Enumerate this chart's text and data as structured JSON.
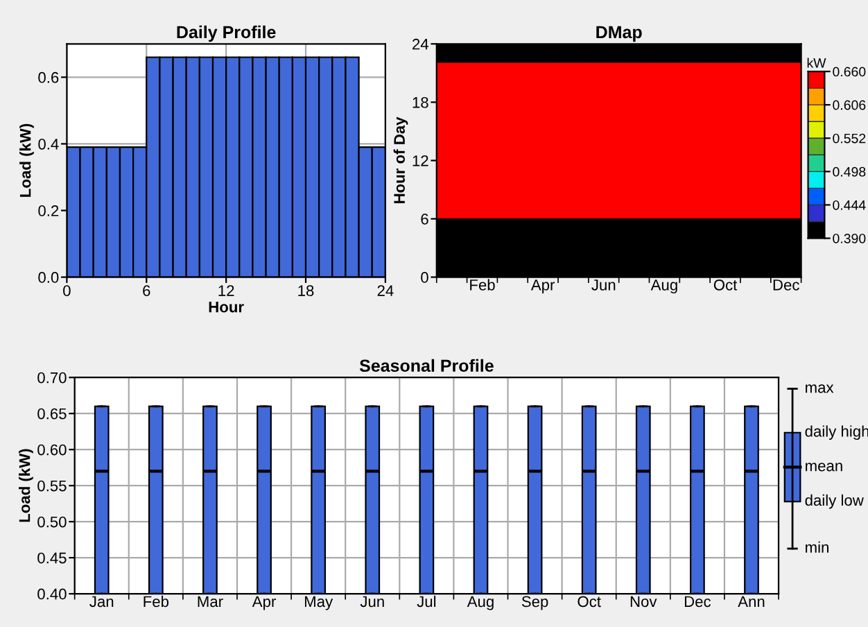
{
  "chart_data": [
    {
      "type": "histogram",
      "title": "Daily Profile",
      "xlabel": "Hour",
      "ylabel": "Load (kW)",
      "bins": [
        0,
        1,
        2,
        3,
        4,
        5,
        6,
        7,
        8,
        9,
        10,
        11,
        12,
        13,
        14,
        15,
        16,
        17,
        18,
        19,
        20,
        21,
        22,
        23,
        24
      ],
      "values": [
        0.39,
        0.39,
        0.39,
        0.39,
        0.39,
        0.39,
        0.66,
        0.66,
        0.66,
        0.66,
        0.66,
        0.66,
        0.66,
        0.66,
        0.66,
        0.66,
        0.66,
        0.66,
        0.66,
        0.66,
        0.66,
        0.66,
        0.39,
        0.39
      ],
      "color": "#4169d9",
      "xlim": [
        0,
        24
      ],
      "xticks": [
        0,
        6,
        12,
        18,
        24
      ],
      "ylim": [
        0,
        0.7
      ],
      "yticks": [
        {
          "value": 0,
          "label": "0.0"
        },
        0.2,
        0.4,
        0.6
      ],
      "grid": true
    },
    {
      "type": "heatmap",
      "title": "DMap",
      "ylabel": "Hour of Day",
      "clabel": "kW",
      "categories": [
        null,
        "Feb",
        null,
        "Apr",
        null,
        "Jun",
        null,
        "Aug",
        null,
        "Oct",
        null,
        "Dec"
      ],
      "ylim": [
        0,
        24
      ],
      "yticks": [
        0,
        6,
        12,
        18,
        24
      ],
      "cells": [
        [
          0.39,
          0.39,
          0.39,
          0.39,
          0.39,
          0.39,
          0.39,
          0.39,
          0.39,
          0.39,
          0.39,
          0.39
        ],
        [
          0.39,
          0.39,
          0.39,
          0.39,
          0.39,
          0.39,
          0.39,
          0.39,
          0.39,
          0.39,
          0.39,
          0.39
        ],
        [
          0.66,
          0.66,
          0.66,
          0.66,
          0.66,
          0.66,
          0.66,
          0.66,
          0.66,
          0.66,
          0.66,
          0.66
        ],
        [
          0.66,
          0.66,
          0.66,
          0.66,
          0.66,
          0.66,
          0.66,
          0.66,
          0.66,
          0.66,
          0.66,
          0.66
        ],
        [
          0.66,
          0.66,
          0.66,
          0.66,
          0.66,
          0.66,
          0.66,
          0.66,
          0.66,
          0.66,
          0.66,
          0.66
        ],
        [
          0.66,
          0.66,
          0.66,
          0.66,
          0.66,
          0.66,
          0.66,
          0.66,
          0.66,
          0.66,
          0.66,
          0.66
        ],
        [
          0.66,
          0.66,
          0.66,
          0.66,
          0.66,
          0.66,
          0.66,
          0.66,
          0.66,
          0.66,
          0.66,
          0.66
        ],
        [
          0.66,
          0.66,
          0.66,
          0.66,
          0.66,
          0.66,
          0.66,
          0.66,
          0.66,
          0.66,
          0.66,
          0.66
        ],
        [
          0.66,
          0.66,
          0.66,
          0.66,
          0.66,
          0.66,
          0.66,
          0.66,
          0.66,
          0.66,
          0.66,
          0.66
        ],
        [
          0.66,
          0.66,
          0.66,
          0.66,
          0.66,
          0.66,
          0.66,
          0.66,
          0.66,
          0.66,
          0.66,
          0.66
        ],
        [
          0.66,
          0.66,
          0.66,
          0.66,
          0.66,
          0.66,
          0.66,
          0.66,
          0.66,
          0.66,
          0.66,
          0.66
        ],
        [
          0.66,
          0.66,
          0.66,
          0.66,
          0.66,
          0.66,
          0.66,
          0.66,
          0.66,
          0.66,
          0.66,
          0.66
        ],
        [
          0.66,
          0.66,
          0.66,
          0.66,
          0.66,
          0.66,
          0.66,
          0.66,
          0.66,
          0.66,
          0.66,
          0.66
        ],
        [
          0.66,
          0.66,
          0.66,
          0.66,
          0.66,
          0.66,
          0.66,
          0.66,
          0.66,
          0.66,
          0.66,
          0.66
        ],
        [
          0.66,
          0.66,
          0.66,
          0.66,
          0.66,
          0.66,
          0.66,
          0.66,
          0.66,
          0.66,
          0.66,
          0.66
        ],
        [
          0.66,
          0.66,
          0.66,
          0.66,
          0.66,
          0.66,
          0.66,
          0.66,
          0.66,
          0.66,
          0.66,
          0.66
        ],
        [
          0.66,
          0.66,
          0.66,
          0.66,
          0.66,
          0.66,
          0.66,
          0.66,
          0.66,
          0.66,
          0.66,
          0.66
        ],
        [
          0.66,
          0.66,
          0.66,
          0.66,
          0.66,
          0.66,
          0.66,
          0.66,
          0.66,
          0.66,
          0.66,
          0.66
        ],
        [
          0.39,
          0.39,
          0.39,
          0.39,
          0.39,
          0.39,
          0.39,
          0.39,
          0.39,
          0.39,
          0.39,
          0.39
        ],
        [
          0.39,
          0.39,
          0.39,
          0.39,
          0.39,
          0.39,
          0.39,
          0.39,
          0.39,
          0.39,
          0.39,
          0.39
        ],
        [
          0.39,
          0.39,
          0.39,
          0.39,
          0.39,
          0.39,
          0.39,
          0.39,
          0.39,
          0.39,
          0.39,
          0.39
        ],
        [
          0.39,
          0.39,
          0.39,
          0.39,
          0.39,
          0.39,
          0.39,
          0.39,
          0.39,
          0.39,
          0.39,
          0.39
        ],
        [
          0.39,
          0.39,
          0.39,
          0.39,
          0.39,
          0.39,
          0.39,
          0.39,
          0.39,
          0.39,
          0.39,
          0.39
        ],
        [
          0.39,
          0.39,
          0.39,
          0.39,
          0.39,
          0.39,
          0.39,
          0.39,
          0.39,
          0.39,
          0.39,
          0.39
        ]
      ],
      "clim": [
        0.39,
        0.66
      ],
      "cticks": [
        {
          "value": 0.39,
          "label": "0.390"
        },
        {
          "value": 0.444,
          "label": "0.444"
        },
        {
          "value": 0.498,
          "label": "0.498"
        },
        {
          "value": 0.552,
          "label": "0.552"
        },
        {
          "value": 0.606,
          "label": "0.606"
        },
        {
          "value": 0.66,
          "label": "0.660"
        }
      ],
      "colors": [
        "#000000",
        "#3030d0",
        "#0060ff",
        "#00f0f0",
        "#20d090",
        "#60b030",
        "#e0f000",
        "#ffd000",
        "#ffa000",
        "#ff0000"
      ]
    },
    {
      "type": "box",
      "title": "Seasonal Profile",
      "ylabel": "Load (kW)",
      "categories": [
        "Jan",
        "Feb",
        "Mar",
        "Apr",
        "May",
        "Jun",
        "Jul",
        "Aug",
        "Sep",
        "Oct",
        "Nov",
        "Dec",
        "Ann"
      ],
      "boxes": [
        {
          "low": 0.4,
          "q1": 0.4,
          "median": 0.57,
          "q3": 0.66,
          "high": 0.66
        },
        {
          "low": 0.4,
          "q1": 0.4,
          "median": 0.57,
          "q3": 0.66,
          "high": 0.66
        },
        {
          "low": 0.4,
          "q1": 0.4,
          "median": 0.57,
          "q3": 0.66,
          "high": 0.66
        },
        {
          "low": 0.4,
          "q1": 0.4,
          "median": 0.57,
          "q3": 0.66,
          "high": 0.66
        },
        {
          "low": 0.4,
          "q1": 0.4,
          "median": 0.57,
          "q3": 0.66,
          "high": 0.66
        },
        {
          "low": 0.4,
          "q1": 0.4,
          "median": 0.57,
          "q3": 0.66,
          "high": 0.66
        },
        {
          "low": 0.4,
          "q1": 0.4,
          "median": 0.57,
          "q3": 0.66,
          "high": 0.66
        },
        {
          "low": 0.4,
          "q1": 0.4,
          "median": 0.57,
          "q3": 0.66,
          "high": 0.66
        },
        {
          "low": 0.4,
          "q1": 0.4,
          "median": 0.57,
          "q3": 0.66,
          "high": 0.66
        },
        {
          "low": 0.4,
          "q1": 0.4,
          "median": 0.57,
          "q3": 0.66,
          "high": 0.66
        },
        {
          "low": 0.4,
          "q1": 0.4,
          "median": 0.57,
          "q3": 0.66,
          "high": 0.66
        },
        {
          "low": 0.4,
          "q1": 0.4,
          "median": 0.57,
          "q3": 0.66,
          "high": 0.66
        },
        {
          "low": 0.4,
          "q1": 0.4,
          "median": 0.57,
          "q3": 0.66,
          "high": 0.66
        }
      ],
      "color": "#4169d9",
      "ylim": [
        0.4,
        0.7
      ],
      "yticks": [
        {
          "value": 0.4,
          "label": "0.40"
        },
        {
          "value": 0.45,
          "label": "0.45"
        },
        {
          "value": 0.5,
          "label": "0.50"
        },
        {
          "value": 0.55,
          "label": "0.55"
        },
        {
          "value": 0.6,
          "label": "0.60"
        },
        {
          "value": 0.65,
          "label": "0.65"
        },
        {
          "value": 0.7,
          "label": "0.70"
        }
      ],
      "grid": true,
      "annotations": [
        "max",
        "daily high",
        "mean",
        "daily low",
        "min"
      ]
    }
  ]
}
